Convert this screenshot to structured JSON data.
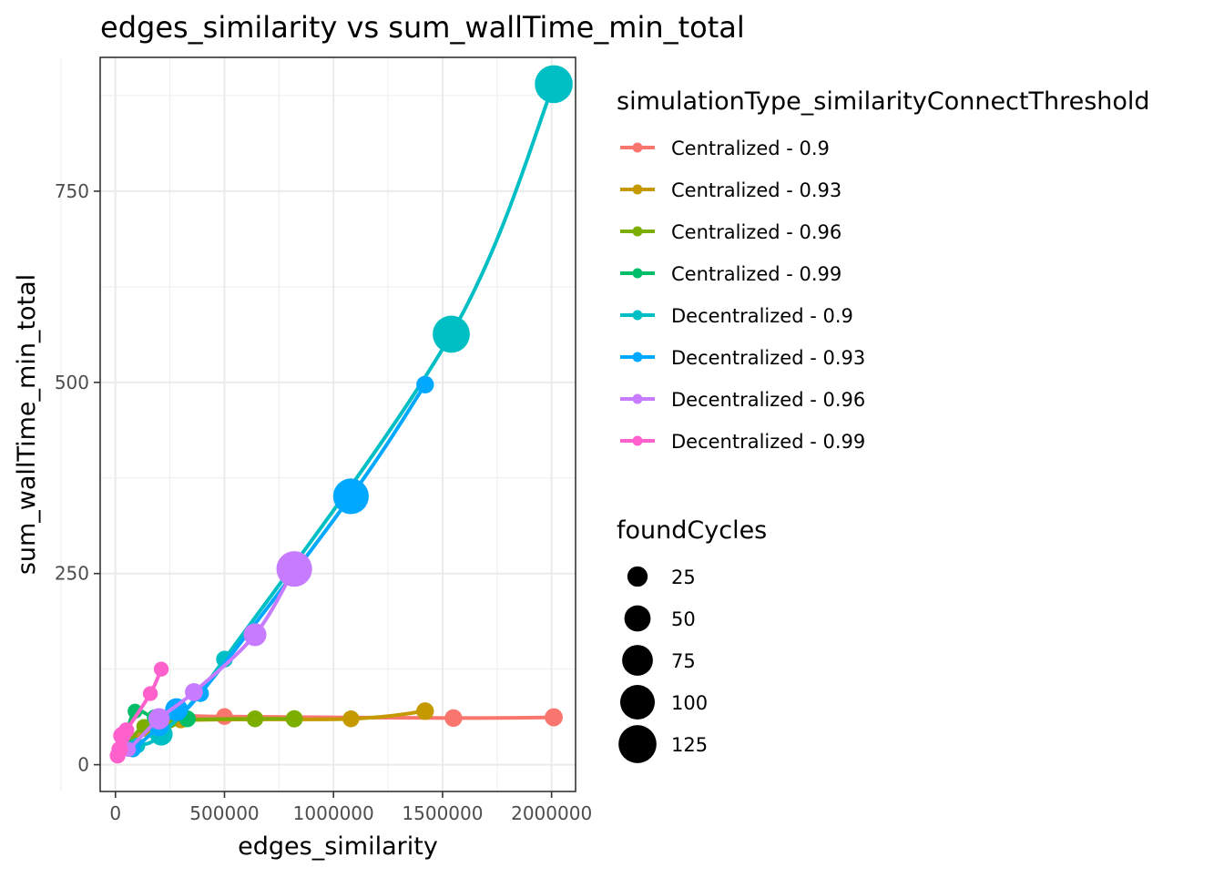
{
  "chart_data": {
    "type": "line",
    "title": "edges_similarity  vs  sum_wallTime_min_total",
    "xlabel": "edges_similarity",
    "ylabel": "sum_wallTime_min_total",
    "xlim": [
      -70000,
      2110000
    ],
    "ylim": [
      -35,
      925
    ],
    "x_ticks": [
      0,
      500000,
      1000000,
      1500000,
      2000000
    ],
    "x_tick_labels": [
      "0",
      "500000",
      "1000000",
      "1500000",
      "2000000"
    ],
    "y_ticks": [
      0,
      250,
      500,
      750
    ],
    "y_tick_labels": [
      "0",
      "250",
      "500",
      "750"
    ],
    "grid": true,
    "legend_position": "right",
    "color_legend_title": "simulationType_similarityConnectThreshold",
    "size_legend_title": "foundCycles",
    "size_legend": [
      {
        "label": "25",
        "value": 25
      },
      {
        "label": "50",
        "value": 50
      },
      {
        "label": "75",
        "value": 75
      },
      {
        "label": "100",
        "value": 100
      },
      {
        "label": "125",
        "value": 125
      }
    ],
    "series": [
      {
        "name": "Centralized - 0.9",
        "color": "#F8766D",
        "points": [
          [
            15000,
            12,
            5
          ],
          [
            60000,
            25,
            6
          ],
          [
            160000,
            50,
            8
          ],
          [
            300000,
            63,
            10
          ],
          [
            500000,
            63,
            12
          ],
          [
            1550000,
            61,
            14
          ],
          [
            2010000,
            62,
            15
          ]
        ]
      },
      {
        "name": "Centralized - 0.93",
        "color": "#C49A00",
        "points": [
          [
            15000,
            12,
            5
          ],
          [
            60000,
            25,
            6
          ],
          [
            150000,
            45,
            8
          ],
          [
            300000,
            58,
            10
          ],
          [
            1080000,
            60,
            12
          ],
          [
            1420000,
            70,
            14
          ]
        ]
      },
      {
        "name": "Centralized - 0.96",
        "color": "#7CAE00",
        "points": [
          [
            15000,
            12,
            5
          ],
          [
            50000,
            25,
            6
          ],
          [
            130000,
            50,
            8
          ],
          [
            250000,
            58,
            10
          ],
          [
            640000,
            60,
            12
          ],
          [
            820000,
            60,
            13
          ]
        ]
      },
      {
        "name": "Centralized - 0.99",
        "color": "#00BE67",
        "points": [
          [
            15000,
            12,
            5
          ],
          [
            40000,
            30,
            6
          ],
          [
            90000,
            70,
            8
          ],
          [
            180000,
            62,
            10
          ],
          [
            330000,
            60,
            12
          ]
        ]
      },
      {
        "name": "Decentralized - 0.9",
        "color": "#00BFC4",
        "points": [
          [
            15000,
            12,
            5
          ],
          [
            100000,
            25,
            10
          ],
          [
            210000,
            40,
            30
          ],
          [
            500000,
            138,
            12
          ],
          [
            1540000,
            563,
            105
          ],
          [
            2010000,
            890,
            110
          ]
        ]
      },
      {
        "name": "Decentralized - 0.93",
        "color": "#00A9FF",
        "points": [
          [
            10000,
            12,
            5
          ],
          [
            80000,
            20,
            10
          ],
          [
            200000,
            50,
            20
          ],
          [
            280000,
            72,
            30
          ],
          [
            390000,
            93,
            12
          ],
          [
            1080000,
            351,
            95
          ],
          [
            1420000,
            497,
            14
          ]
        ]
      },
      {
        "name": "Decentralized - 0.96",
        "color": "#C77CFF",
        "points": [
          [
            10000,
            12,
            5
          ],
          [
            60000,
            20,
            8
          ],
          [
            200000,
            60,
            25
          ],
          [
            360000,
            95,
            15
          ],
          [
            640000,
            170,
            30
          ],
          [
            820000,
            256,
            95
          ]
        ]
      },
      {
        "name": "Decentralized - 0.99",
        "color": "#FF61CC",
        "points": [
          [
            10000,
            12,
            10
          ],
          [
            20000,
            20,
            12
          ],
          [
            30000,
            38,
            14
          ],
          [
            50000,
            45,
            10
          ],
          [
            160000,
            93,
            8
          ],
          [
            210000,
            125,
            8
          ]
        ]
      }
    ]
  }
}
